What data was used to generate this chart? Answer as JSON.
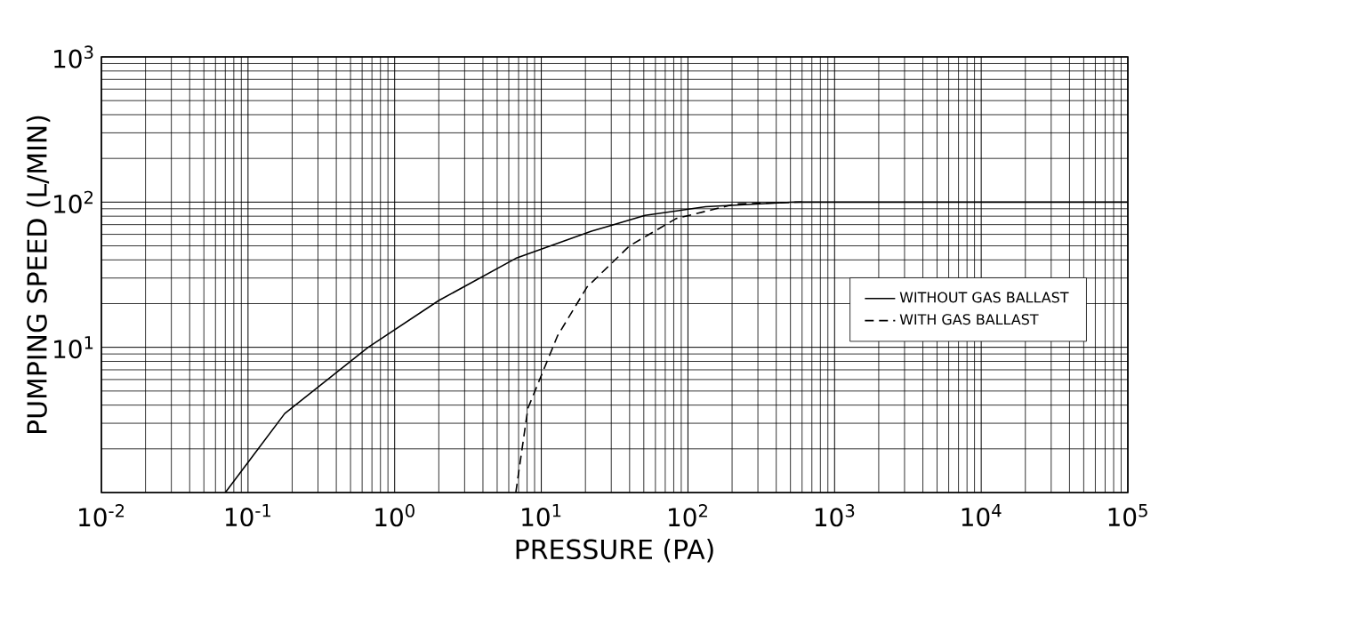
{
  "chart_data": {
    "type": "line",
    "xlabel": "PRESSURE (PA)",
    "ylabel": "PUMPING SPEED (L/MIN)",
    "log": "xy",
    "grid": true,
    "legend": "right",
    "marker": "none",
    "xlim": [
      0.01,
      100000
    ],
    "ylim": [
      1,
      1000
    ],
    "xticks": [
      {
        "value": 0.01,
        "label": "10$^{-2}$"
      },
      {
        "value": 0.1,
        "label": "10$^{-1}$"
      },
      {
        "value": 1,
        "label": "10$^{0}$"
      },
      {
        "value": 10,
        "label": "10$^{1}$"
      },
      {
        "value": 100,
        "label": "10$^{2}$"
      },
      {
        "value": 1000,
        "label": "10$^{3}$"
      },
      {
        "value": 10000,
        "label": "10$^{4}$"
      },
      {
        "value": 100000,
        "label": "10$^{5}$"
      }
    ],
    "yticks": [
      {
        "value": 1,
        "label": null
      },
      {
        "value": 10,
        "label": "10$^{1}$"
      },
      {
        "value": 100,
        "label": "10$^{2}$"
      },
      {
        "value": 1000,
        "label": "10$^{3}$"
      }
    ],
    "series": [
      {
        "name": "WITHOUT GAS BALLAST",
        "color": "#000000",
        "line_style": "solid",
        "x": [
          0.07,
          0.178,
          0.66,
          2.0,
          6.7,
          22,
          51,
          132,
          540,
          100000
        ],
        "values": [
          1,
          3.5,
          10,
          21,
          41,
          63,
          81,
          93,
          100,
          100
        ]
      },
      {
        "name": "WITH  GAS  BALLAST",
        "color": "#000000",
        "line_style": "dashed",
        "x": [
          6.7,
          8.1,
          12.9,
          20.5,
          40,
          83,
          210,
          600
        ],
        "values": [
          1,
          3.8,
          12,
          26,
          50,
          77,
          97,
          100
        ]
      }
    ]
  }
}
